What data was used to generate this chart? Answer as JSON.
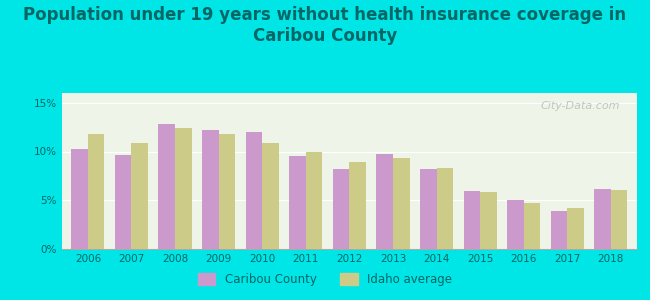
{
  "title": "Population under 19 years without health insurance coverage in\nCaribou County",
  "years": [
    2006,
    2007,
    2008,
    2009,
    2010,
    2011,
    2012,
    2013,
    2014,
    2015,
    2016,
    2017,
    2018
  ],
  "caribou": [
    10.3,
    9.6,
    12.8,
    12.2,
    12.0,
    9.5,
    8.2,
    9.7,
    8.2,
    6.0,
    5.0,
    3.9,
    6.2
  ],
  "idaho": [
    11.8,
    10.9,
    12.4,
    11.8,
    10.9,
    9.9,
    8.9,
    9.3,
    8.3,
    5.8,
    4.7,
    4.2,
    6.1
  ],
  "caribou_color": "#cc99cc",
  "idaho_color": "#cccc88",
  "background_outer": "#00e5e5",
  "background_plot": "#eef5e8",
  "bar_width": 0.38,
  "ylim": [
    0,
    16
  ],
  "yticks": [
    0,
    5,
    10,
    15
  ],
  "ytick_labels": [
    "0%",
    "5%",
    "10%",
    "15%"
  ],
  "title_fontsize": 12,
  "title_color": "#006666",
  "legend_caribou": "Caribou County",
  "legend_idaho": "Idaho average",
  "watermark": "City-Data.com"
}
